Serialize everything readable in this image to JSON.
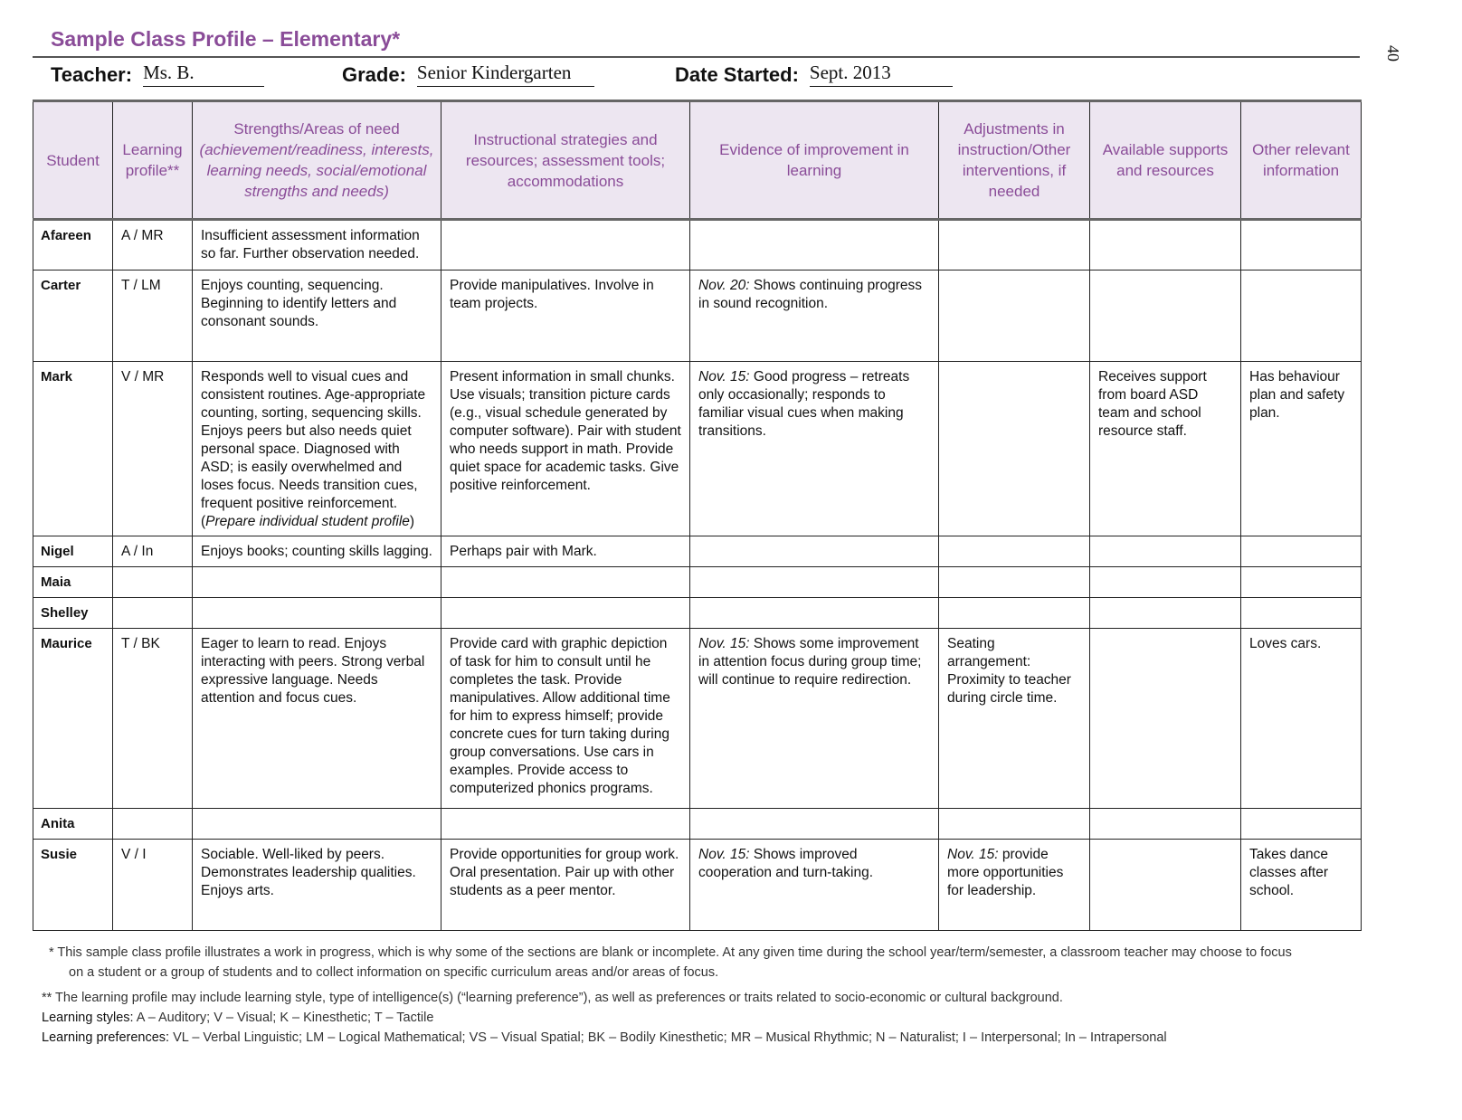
{
  "title": "Sample Class Profile – Elementary*",
  "page_number": "40",
  "meta": {
    "teacher_label": "Teacher:",
    "teacher": "Ms. B.",
    "grade_label": "Grade:",
    "grade": "Senior Kindergarten",
    "date_label": "Date Started:",
    "date": "Sept. 2013"
  },
  "colors": {
    "accent": "#8a4c98",
    "header_bg": "#ede6f1"
  },
  "columns": [
    {
      "label": "Student"
    },
    {
      "label": "Learning profile**"
    },
    {
      "label": "Strengths/Areas of need",
      "italic": "(achievement/readiness, interests, learning needs, social/emotional strengths and needs)"
    },
    {
      "label": "Instructional strategies and resources; assessment tools; accommodations"
    },
    {
      "label": "Evidence of improvement in learning"
    },
    {
      "label": "Adjustments in instruction/Other interventions, if needed"
    },
    {
      "label": "Available supports and resources"
    },
    {
      "label": "Other relevant information"
    }
  ],
  "rows": [
    {
      "student": "Afareen",
      "profile": "A / MR",
      "cells": [
        [
          {
            "t": "Insufficient assessment information so far. Further observation needed."
          }
        ],
        [],
        [],
        [],
        [],
        []
      ]
    },
    {
      "student": "Carter",
      "profile": "T / LM",
      "cells": [
        [
          {
            "t": "Enjoys counting, sequencing. Beginning to identify letters and consonant sounds."
          }
        ],
        [
          {
            "t": "Provide manipulatives. Involve in team projects."
          }
        ],
        [
          {
            "t": "Nov. 20:",
            "i": true
          },
          {
            "t": " Shows continuing progress in sound recognition."
          }
        ],
        [],
        [],
        []
      ]
    },
    {
      "student": "Mark",
      "profile": "V / MR",
      "cells": [
        [
          {
            "t": "Responds well to visual cues and consistent routines. Age-appropriate counting, sorting, sequencing skills. Enjoys peers but also needs quiet personal space. Diagnosed with ASD; is easily overwhelmed and loses focus. Needs transition cues, frequent positive reinforcement. ("
          },
          {
            "t": "Prepare individual student profile",
            "i": true
          },
          {
            "t": ")"
          }
        ],
        [
          {
            "t": "Present information in small chunks. Use visuals; transition picture cards (e.g., visual schedule generated by computer software). Pair with student who needs support in math. Provide quiet space for academic tasks. Give positive reinforcement."
          }
        ],
        [
          {
            "t": "Nov. 15:",
            "i": true
          },
          {
            "t": " Good progress – retreats only occasionally; responds to familiar visual cues when making transitions."
          }
        ],
        [],
        [
          {
            "t": "Receives support from board ASD team and school resource staff."
          }
        ],
        [
          {
            "t": "Has behaviour plan and safety plan."
          }
        ]
      ]
    },
    {
      "student": "Nigel",
      "profile": "A / In",
      "cells": [
        [
          {
            "t": "Enjoys books; counting skills lagging."
          }
        ],
        [
          {
            "t": "Perhaps pair with Mark."
          }
        ],
        [],
        [],
        [],
        []
      ]
    },
    {
      "student": "Maia",
      "profile": "",
      "cells": [
        [],
        [],
        [],
        [],
        [],
        []
      ]
    },
    {
      "student": "Shelley",
      "profile": "",
      "cells": [
        [],
        [],
        [],
        [],
        [],
        []
      ]
    },
    {
      "student": "Maurice",
      "profile": "T / BK",
      "cells": [
        [
          {
            "t": "Eager to learn to read. Enjoys interacting with peers. Strong verbal expressive language. Needs attention and focus cues."
          }
        ],
        [
          {
            "t": "Provide card with graphic depiction of task for him to consult until he completes the task. Provide manipulatives. Allow additional time for him to express himself; provide concrete cues for turn taking during group conversations. Use cars in examples. Provide access to computerized phonics programs."
          }
        ],
        [
          {
            "t": "Nov. 15:",
            "i": true
          },
          {
            "t": " Shows some improvement in attention focus during group time; will continue to require redirection."
          }
        ],
        [
          {
            "t": "Seating arrangement: Proximity to teacher during circle time."
          }
        ],
        [],
        [
          {
            "t": "Loves cars."
          }
        ]
      ]
    },
    {
      "student": "Anita",
      "profile": "",
      "cells": [
        [],
        [],
        [],
        [],
        [],
        []
      ]
    },
    {
      "student": "Susie",
      "profile": "V / I",
      "cells": [
        [
          {
            "t": "Sociable. Well-liked by peers. Demonstrates leadership qualities. Enjoys arts."
          }
        ],
        [
          {
            "t": "Provide opportunities for group work. Oral presentation. Pair up with other students as a peer mentor."
          }
        ],
        [
          {
            "t": "Nov. 15:",
            "i": true
          },
          {
            "t": " Shows improved cooperation and turn-taking."
          }
        ],
        [
          {
            "t": "Nov. 15:",
            "i": true
          },
          {
            "t": " provide more opportunities for leadership."
          }
        ],
        [],
        [
          {
            "t": "Takes dance classes after school."
          }
        ]
      ]
    }
  ],
  "footnotes": {
    "note1": "*  This sample class profile illustrates a work in progress, which is why some of the sections are blank or incomplete. At any given time during the school year/term/semester, a classroom teacher may choose to focus on a student or a group of students and to collect information on specific curriculum areas and/or areas of focus.",
    "note2": "**  The learning profile may include learning style, type of intelligence(s) (“learning preference”), as well as preferences or traits related to socio-economic or cultural background.",
    "styles_label": "Learning styles:",
    "styles": "A – Auditory; V – Visual; K – Kinesthetic; T – Tactile",
    "prefs_label": "Learning preferences:",
    "prefs": "VL – Verbal Linguistic; LM – Logical Mathematical; VS – Visual Spatial; BK – Bodily Kinesthetic; MR – Musical Rhythmic; N – Naturalist; I – Interpersonal; In – Intrapersonal"
  }
}
